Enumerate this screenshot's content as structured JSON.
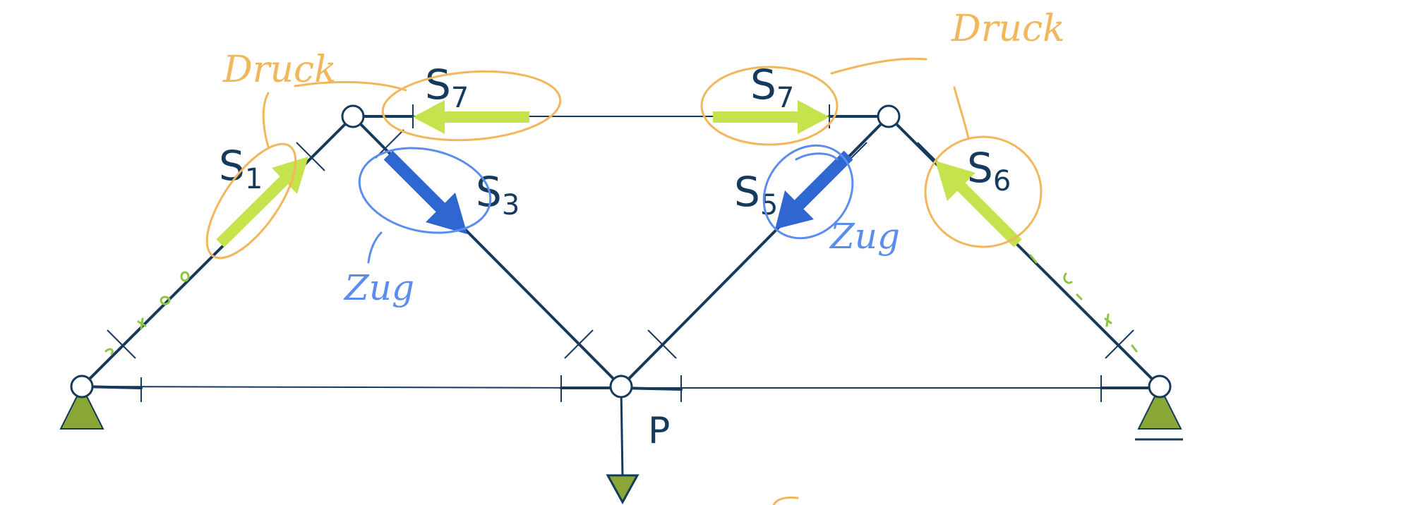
{
  "labels": {
    "s1": "S",
    "s1_sub": "1",
    "s3": "S",
    "s3_sub": "3",
    "s5": "S",
    "s5_sub": "5",
    "s6": "S",
    "s6_sub": "6",
    "s7_left": "S",
    "s7_left_sub": "7",
    "s7_right": "S",
    "s7_right_sub": "7",
    "load": "P"
  },
  "annotations": {
    "druck_left": "Druck",
    "druck_right": "Druck",
    "zug_left": "Zug",
    "zug_right": "Zug"
  },
  "colors": {
    "structure": "#163a5c",
    "compression_arrow": "#c5e34d",
    "tension_arrow": "#2f66d0",
    "support": "#8aa636",
    "annotation_orange": "#f2b65c",
    "annotation_blue": "#5b8def"
  }
}
